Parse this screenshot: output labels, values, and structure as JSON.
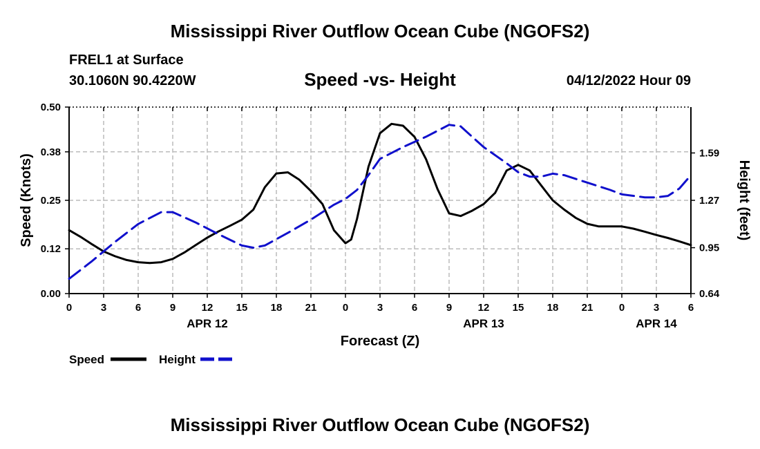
{
  "header": {
    "title": "Mississippi River Outflow Ocean Cube (NGOFS2)",
    "station": "FREL1 at Surface",
    "coords": "30.1060N  90.4220W",
    "subtitle": "Speed -vs- Height",
    "datetime": "04/12/2022 Hour 09"
  },
  "footer": {
    "title": "Mississippi River Outflow Ocean Cube (NGOFS2)"
  },
  "chart_data": {
    "type": "line",
    "title": "Speed -vs- Height",
    "xlabel": "Forecast (Z)",
    "ylabel": "Speed (Knots)",
    "y2label": "Height (feet)",
    "x_range_hours": [
      0,
      54
    ],
    "x_ticks": [
      {
        "h": 0,
        "label": "0"
      },
      {
        "h": 3,
        "label": "3"
      },
      {
        "h": 6,
        "label": "6"
      },
      {
        "h": 9,
        "label": "9"
      },
      {
        "h": 12,
        "label": "12"
      },
      {
        "h": 15,
        "label": "15"
      },
      {
        "h": 18,
        "label": "18"
      },
      {
        "h": 21,
        "label": "21"
      },
      {
        "h": 24,
        "label": "0"
      },
      {
        "h": 27,
        "label": "3"
      },
      {
        "h": 30,
        "label": "6"
      },
      {
        "h": 33,
        "label": "9"
      },
      {
        "h": 36,
        "label": "12"
      },
      {
        "h": 39,
        "label": "15"
      },
      {
        "h": 42,
        "label": "18"
      },
      {
        "h": 45,
        "label": "21"
      },
      {
        "h": 48,
        "label": "0"
      },
      {
        "h": 51,
        "label": "3"
      },
      {
        "h": 54,
        "label": "6"
      }
    ],
    "date_labels": [
      {
        "h": 12,
        "label": "APR 12"
      },
      {
        "h": 36,
        "label": "APR 13"
      },
      {
        "h": 51,
        "label": "APR 14"
      }
    ],
    "ylim": [
      0,
      0.5
    ],
    "y_ticks": [
      "0.00",
      "0.12",
      "0.25",
      "0.38",
      "0.50"
    ],
    "y2lim": [
      0.64,
      1.9
    ],
    "y2_ticks": [
      "0.64",
      "0.95",
      "1.27",
      "1.59"
    ],
    "grid": true,
    "legend": [
      {
        "name": "Speed",
        "color": "#000000",
        "dash": "solid"
      },
      {
        "name": "Height",
        "color": "#1010cc",
        "dash": "dashed"
      }
    ],
    "series": [
      {
        "name": "Speed",
        "axis": "left",
        "color": "#000000",
        "points": [
          [
            0,
            0.17
          ],
          [
            1,
            0.152
          ],
          [
            2,
            0.132
          ],
          [
            3,
            0.113
          ],
          [
            4,
            0.1
          ],
          [
            5,
            0.09
          ],
          [
            6,
            0.084
          ],
          [
            7,
            0.082
          ],
          [
            8,
            0.084
          ],
          [
            9,
            0.093
          ],
          [
            10,
            0.11
          ],
          [
            11,
            0.13
          ],
          [
            12,
            0.15
          ],
          [
            13,
            0.167
          ],
          [
            14,
            0.182
          ],
          [
            15,
            0.198
          ],
          [
            16,
            0.225
          ],
          [
            17,
            0.285
          ],
          [
            18,
            0.322
          ],
          [
            19,
            0.325
          ],
          [
            20,
            0.305
          ],
          [
            21,
            0.275
          ],
          [
            22,
            0.24
          ],
          [
            23,
            0.17
          ],
          [
            24,
            0.135
          ],
          [
            24.5,
            0.145
          ],
          [
            25,
            0.2
          ],
          [
            26,
            0.34
          ],
          [
            27,
            0.43
          ],
          [
            28,
            0.455
          ],
          [
            29,
            0.45
          ],
          [
            30,
            0.42
          ],
          [
            31,
            0.36
          ],
          [
            32,
            0.28
          ],
          [
            33,
            0.215
          ],
          [
            34,
            0.208
          ],
          [
            35,
            0.222
          ],
          [
            36,
            0.24
          ],
          [
            37,
            0.27
          ],
          [
            38,
            0.33
          ],
          [
            39,
            0.345
          ],
          [
            40,
            0.33
          ],
          [
            41,
            0.29
          ],
          [
            42,
            0.25
          ],
          [
            43,
            0.225
          ],
          [
            44,
            0.203
          ],
          [
            45,
            0.187
          ],
          [
            46,
            0.18
          ],
          [
            47,
            0.18
          ],
          [
            48,
            0.18
          ],
          [
            49,
            0.174
          ],
          [
            50,
            0.166
          ],
          [
            51,
            0.157
          ],
          [
            52,
            0.149
          ],
          [
            53,
            0.14
          ],
          [
            54,
            0.13
          ]
        ]
      },
      {
        "name": "Height",
        "axis": "right",
        "color": "#1010cc",
        "points": [
          [
            0,
            0.74
          ],
          [
            2,
            0.86
          ],
          [
            4,
            0.99
          ],
          [
            6,
            1.11
          ],
          [
            8,
            1.19
          ],
          [
            9,
            1.19
          ],
          [
            11,
            1.12
          ],
          [
            13,
            1.04
          ],
          [
            15,
            0.965
          ],
          [
            16,
            0.95
          ],
          [
            17,
            0.965
          ],
          [
            19,
            1.05
          ],
          [
            21,
            1.14
          ],
          [
            23,
            1.24
          ],
          [
            24,
            1.28
          ],
          [
            25,
            1.34
          ],
          [
            26,
            1.44
          ],
          [
            27,
            1.55
          ],
          [
            29,
            1.63
          ],
          [
            31,
            1.7
          ],
          [
            33,
            1.78
          ],
          [
            34,
            1.77
          ],
          [
            35,
            1.7
          ],
          [
            36,
            1.63
          ],
          [
            38,
            1.52
          ],
          [
            39,
            1.46
          ],
          [
            40,
            1.43
          ],
          [
            41,
            1.43
          ],
          [
            42,
            1.45
          ],
          [
            43,
            1.44
          ],
          [
            45,
            1.39
          ],
          [
            47,
            1.34
          ],
          [
            48,
            1.31
          ],
          [
            50,
            1.29
          ],
          [
            51,
            1.29
          ],
          [
            52,
            1.3
          ],
          [
            53,
            1.35
          ],
          [
            54,
            1.44
          ]
        ]
      }
    ]
  }
}
